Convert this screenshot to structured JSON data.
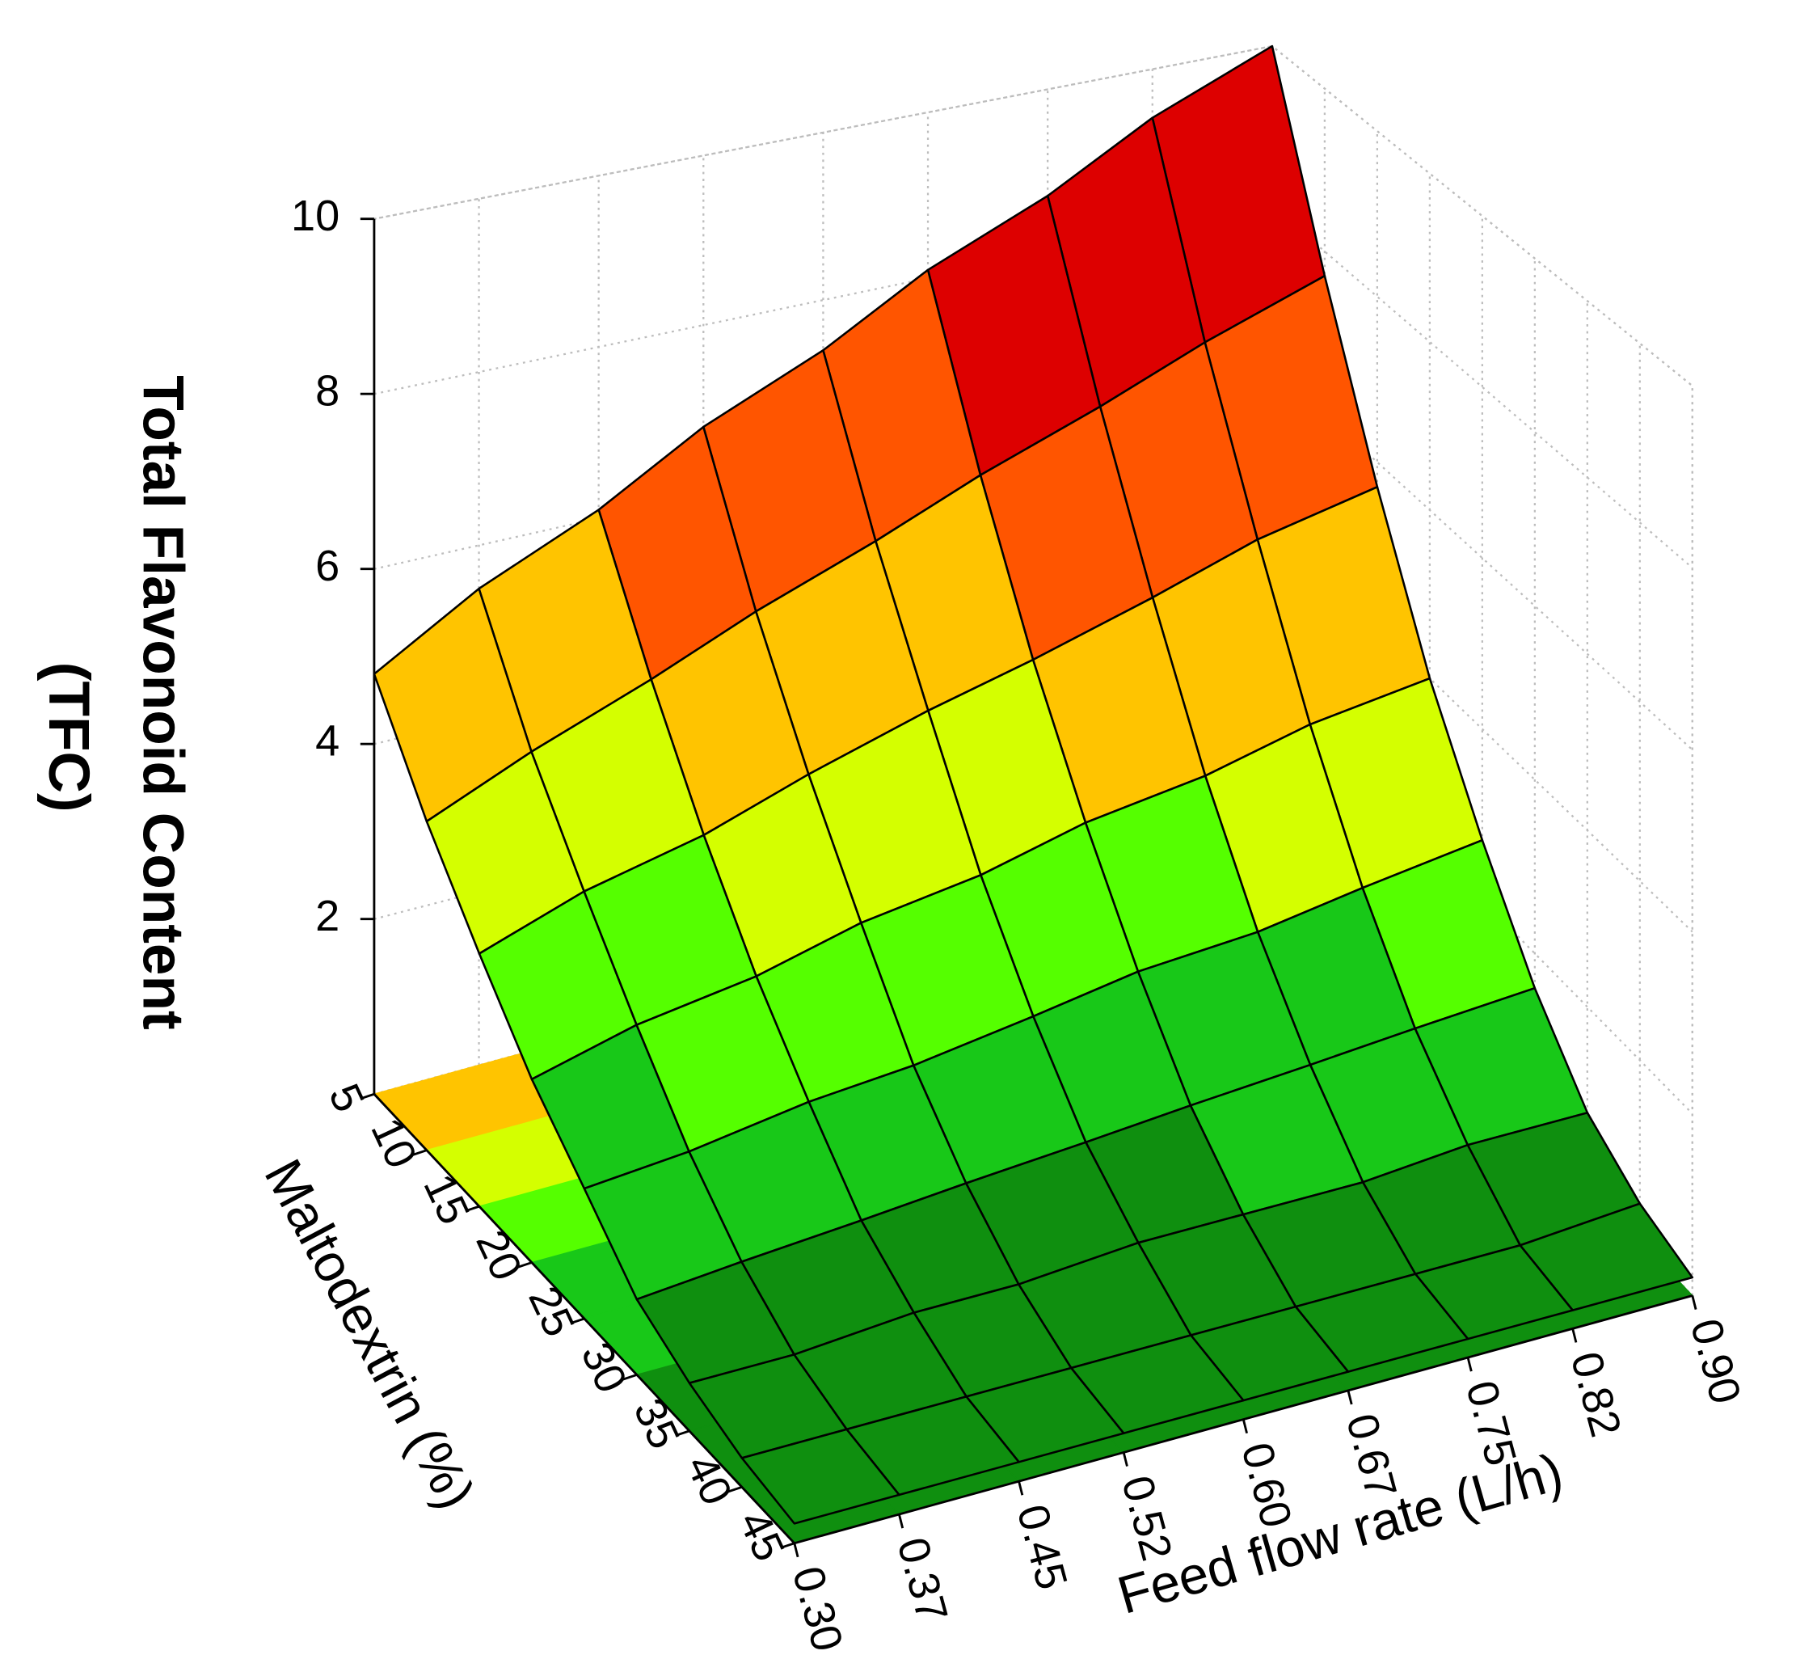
{
  "chart_data": {
    "type": "surface3d",
    "zlabel_lines": [
      "Total Flavonoid Content",
      "(TFC)"
    ],
    "xlabel": "Feed flow rate (L/h)",
    "ylabel": "Maltodextrin (%)",
    "x": [
      0.3,
      0.37,
      0.45,
      0.52,
      0.6,
      0.67,
      0.75,
      0.82,
      0.9
    ],
    "y": [
      5,
      10,
      15,
      20,
      25,
      30,
      35,
      40,
      45
    ],
    "z": [
      [
        4.8,
        5.5,
        6.1,
        6.8,
        7.4,
        8.1,
        8.7,
        9.4,
        10.0
      ],
      [
        3.7,
        4.2,
        4.7,
        5.2,
        5.7,
        6.2,
        6.7,
        7.2,
        7.7
      ],
      [
        2.8,
        3.2,
        3.5,
        3.9,
        4.3,
        4.6,
        5.0,
        5.4,
        5.7
      ],
      [
        2.0,
        2.3,
        2.5,
        2.8,
        3.0,
        3.3,
        3.5,
        3.8,
        4.0
      ],
      [
        1.4,
        1.5,
        1.7,
        1.8,
        2.0,
        2.2,
        2.3,
        2.5,
        2.7
      ],
      [
        0.8,
        0.9,
        1.0,
        1.1,
        1.2,
        1.3,
        1.4,
        1.5,
        1.6
      ],
      [
        0.5,
        0.5,
        0.6,
        0.6,
        0.7,
        0.7,
        0.7,
        0.8,
        0.8
      ],
      [
        0.3,
        0.3,
        0.3,
        0.3,
        0.3,
        0.3,
        0.3,
        0.3,
        0.4
      ],
      [
        0.2,
        0.2,
        0.2,
        0.2,
        0.2,
        0.2,
        0.2,
        0.2,
        0.2
      ]
    ],
    "xlim": [
      0.3,
      0.9
    ],
    "ylim": [
      5,
      45
    ],
    "zlim": [
      0,
      10
    ],
    "xticks": [
      {
        "value": 0.3,
        "label": "0.30"
      },
      0.37,
      0.45,
      0.52,
      {
        "value": 0.6,
        "label": "0.60"
      },
      0.67,
      0.75,
      0.82,
      {
        "value": 0.9,
        "label": "0.90"
      }
    ],
    "yticks": [
      5,
      10,
      15,
      20,
      25,
      30,
      35,
      40,
      45
    ],
    "zticks": [
      2,
      4,
      6,
      8,
      10
    ],
    "color_levels": [
      1,
      2,
      3,
      4,
      5.5,
      7,
      9
    ],
    "colors": [
      "#0f8f0f",
      "#18c818",
      "#55ff00",
      "#d4ff00",
      "#ffc400",
      "#ff5500",
      "#dd0000",
      "#8b0000"
    ],
    "grid": true
  }
}
